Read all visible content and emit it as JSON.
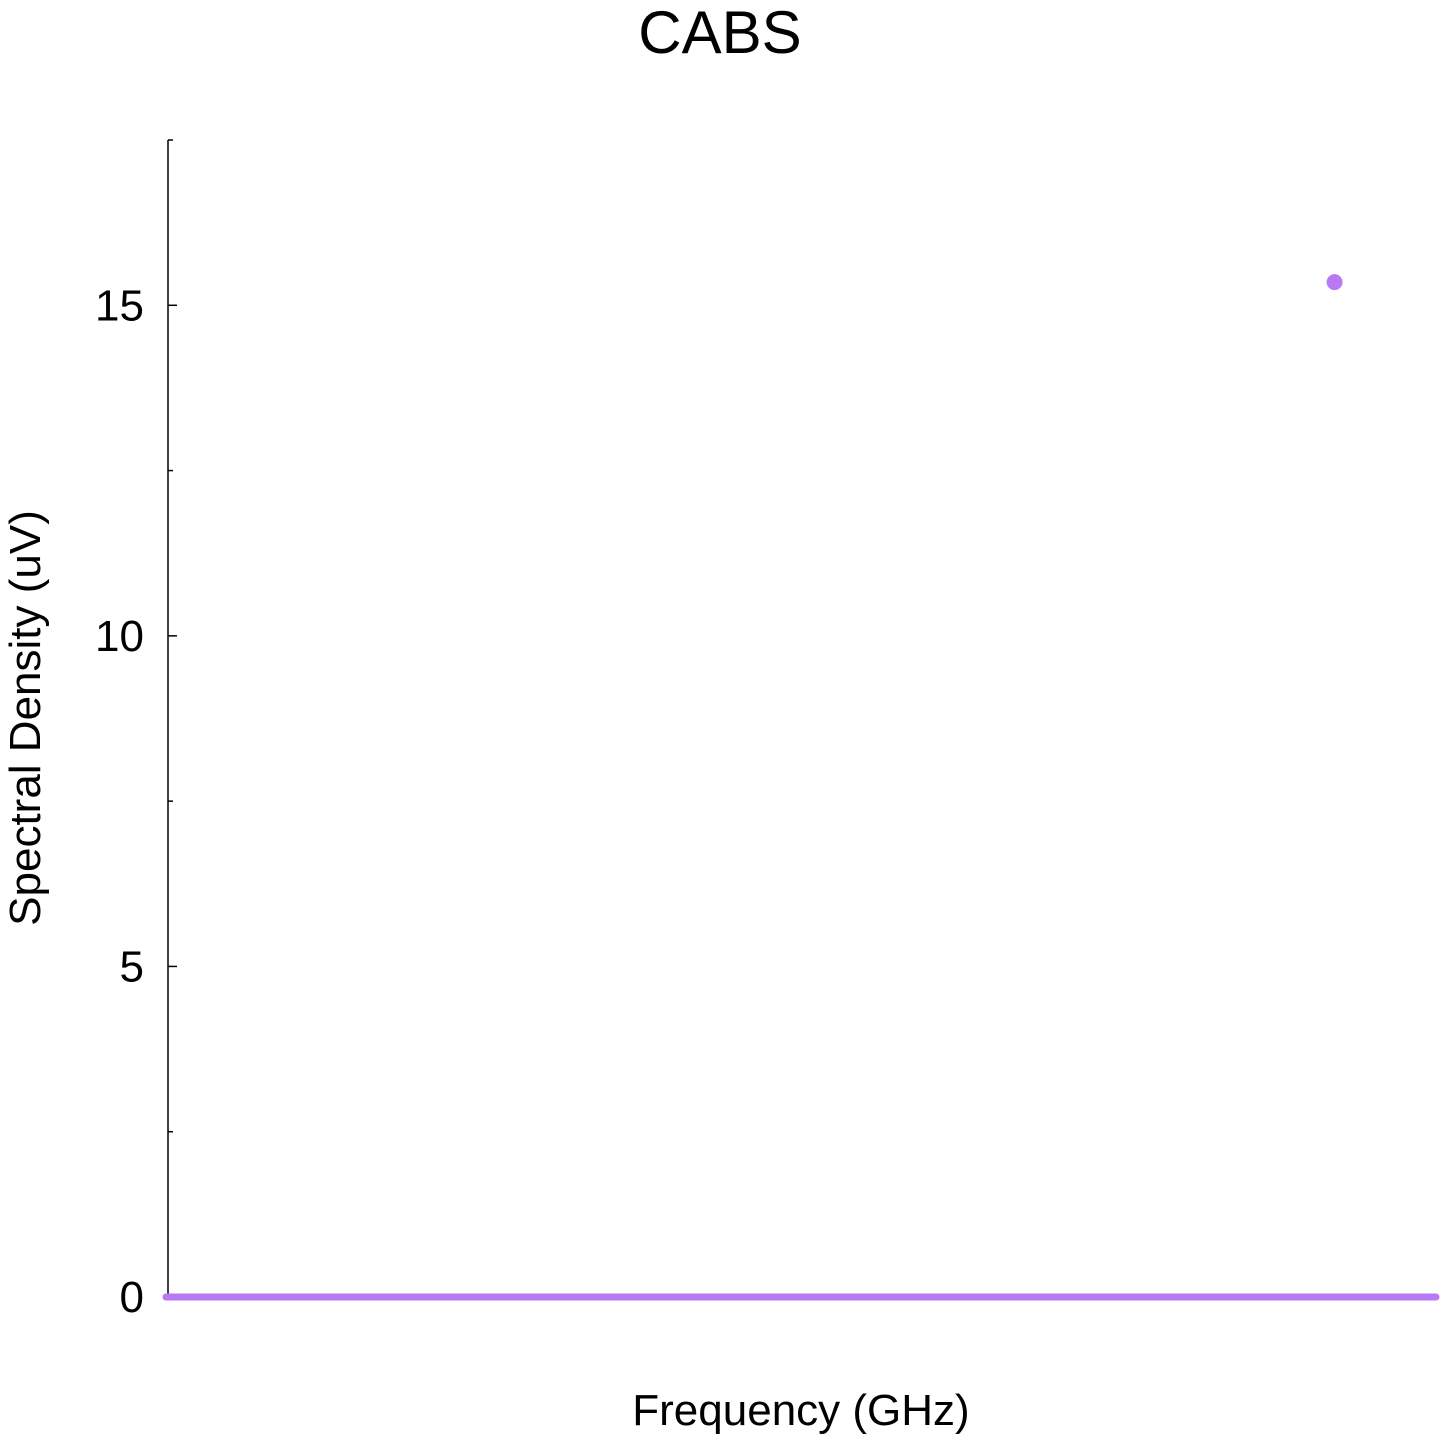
{
  "chart_data": {
    "type": "scatter",
    "title": "CABS",
    "xlabel": "Frequency (GHz)",
    "ylabel": "Spectral Density (uV)",
    "ylim": [
      0,
      17.5
    ],
    "xlim": [
      0,
      1
    ],
    "yticks_major": [
      0,
      5,
      10,
      15
    ],
    "yticks_minor": [
      2.5,
      7.5,
      12.5,
      17.5
    ],
    "grid": false,
    "legend": "none",
    "series": [
      {
        "color": "#b87af2",
        "baseline": 0,
        "points": [
          {
            "x": 0.92,
            "y": 15.35
          }
        ]
      }
    ]
  }
}
